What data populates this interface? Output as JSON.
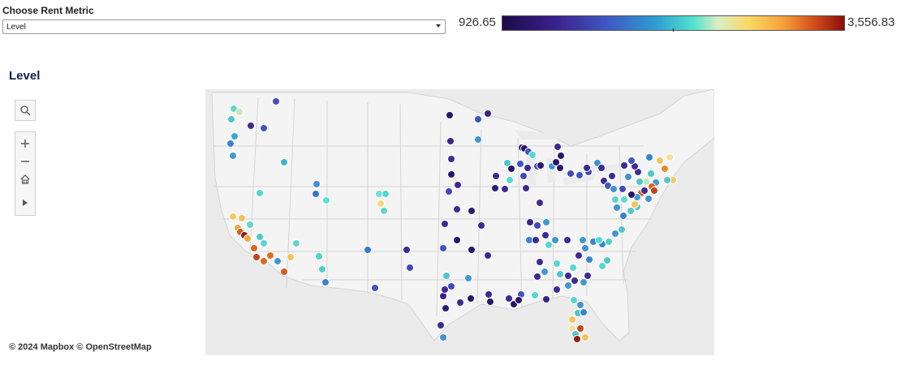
{
  "controls": {
    "metric_label": "Choose Rent Metric",
    "metric_value": "Level"
  },
  "legend": {
    "min": "926.65",
    "max": "3,556.83"
  },
  "map": {
    "title": "Level",
    "attribution": "© 2024 Mapbox  © OpenStreetMap"
  },
  "colors": {
    "title": "#0b2150",
    "scale_low": "#1d0a4a",
    "scale_mid": "#52e3cc",
    "scale_high": "#8b0d0b"
  },
  "toolbar": {
    "icons": [
      "search-icon",
      "zoom-in-icon",
      "zoom-out-icon",
      "home-icon",
      "play-icon"
    ]
  }
}
